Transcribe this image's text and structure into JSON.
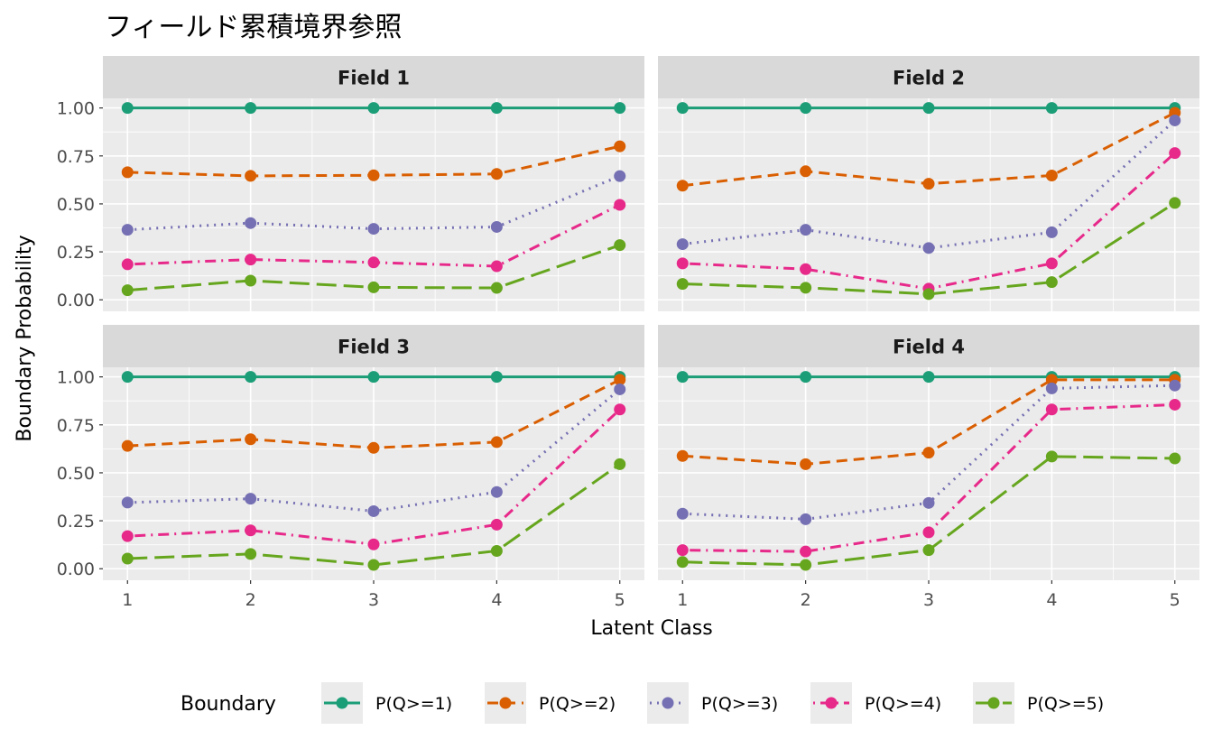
{
  "chart_data": {
    "type": "line",
    "title": "フィールド累積境界参照",
    "xlabel": "Latent Class",
    "ylabel": "Boundary Probability",
    "x": [
      1,
      2,
      3,
      4,
      5
    ],
    "x_ticks": [
      "1",
      "2",
      "3",
      "4",
      "5"
    ],
    "y_ticks": [
      "0.00",
      "0.25",
      "0.50",
      "0.75",
      "1.00"
    ],
    "y_tick_values": [
      0,
      0.25,
      0.5,
      0.75,
      1
    ],
    "xlim": [
      0.8,
      5.2
    ],
    "ylim": [
      -0.06,
      1.05
    ],
    "grid": true,
    "legend": {
      "title": "Boundary",
      "position": "bottom",
      "entries": [
        "P(Q>=1)",
        "P(Q>=2)",
        "P(Q>=3)",
        "P(Q>=4)",
        "P(Q>=5)"
      ]
    },
    "colors": [
      "#1B9E77",
      "#D95F02",
      "#7570B3",
      "#E7298A",
      "#66A61E"
    ],
    "linetypes": [
      "solid",
      "dashed",
      "dotted",
      "dotdash",
      "longdash"
    ],
    "panels": [
      {
        "label": "Field 1",
        "series": [
          {
            "name": "P(Q>=1)",
            "values": [
              1,
              1,
              1,
              1,
              1
            ]
          },
          {
            "name": "P(Q>=2)",
            "values": [
              0.665,
              0.646,
              0.649,
              0.656,
              0.8
            ]
          },
          {
            "name": "P(Q>=3)",
            "values": [
              0.365,
              0.4,
              0.37,
              0.38,
              0.645
            ]
          },
          {
            "name": "P(Q>=4)",
            "values": [
              0.185,
              0.21,
              0.195,
              0.175,
              0.495
            ]
          },
          {
            "name": "P(Q>=5)",
            "values": [
              0.05,
              0.1,
              0.065,
              0.062,
              0.285
            ]
          }
        ]
      },
      {
        "label": "Field 2",
        "series": [
          {
            "name": "P(Q>=1)",
            "values": [
              1,
              1,
              1,
              1,
              1
            ]
          },
          {
            "name": "P(Q>=2)",
            "values": [
              0.595,
              0.67,
              0.605,
              0.648,
              0.975
            ]
          },
          {
            "name": "P(Q>=3)",
            "values": [
              0.29,
              0.365,
              0.27,
              0.352,
              0.935
            ]
          },
          {
            "name": "P(Q>=4)",
            "values": [
              0.19,
              0.16,
              0.058,
              0.19,
              0.765
            ]
          },
          {
            "name": "P(Q>=5)",
            "values": [
              0.083,
              0.063,
              0.03,
              0.092,
              0.505
            ]
          }
        ]
      },
      {
        "label": "Field 3",
        "series": [
          {
            "name": "P(Q>=1)",
            "values": [
              1,
              1,
              1,
              1,
              1
            ]
          },
          {
            "name": "P(Q>=2)",
            "values": [
              0.64,
              0.675,
              0.63,
              0.66,
              0.985
            ]
          },
          {
            "name": "P(Q>=3)",
            "values": [
              0.345,
              0.365,
              0.3,
              0.4,
              0.935
            ]
          },
          {
            "name": "P(Q>=4)",
            "values": [
              0.17,
              0.2,
              0.127,
              0.23,
              0.83
            ]
          },
          {
            "name": "P(Q>=5)",
            "values": [
              0.053,
              0.077,
              0.02,
              0.093,
              0.545
            ]
          }
        ]
      },
      {
        "label": "Field 4",
        "series": [
          {
            "name": "P(Q>=1)",
            "values": [
              1,
              1,
              1,
              1,
              1
            ]
          },
          {
            "name": "P(Q>=2)",
            "values": [
              0.588,
              0.545,
              0.605,
              0.985,
              0.985
            ]
          },
          {
            "name": "P(Q>=3)",
            "values": [
              0.287,
              0.258,
              0.343,
              0.94,
              0.955
            ]
          },
          {
            "name": "P(Q>=4)",
            "values": [
              0.097,
              0.09,
              0.19,
              0.83,
              0.855
            ]
          },
          {
            "name": "P(Q>=5)",
            "values": [
              0.035,
              0.02,
              0.097,
              0.585,
              0.575
            ]
          }
        ]
      }
    ]
  }
}
